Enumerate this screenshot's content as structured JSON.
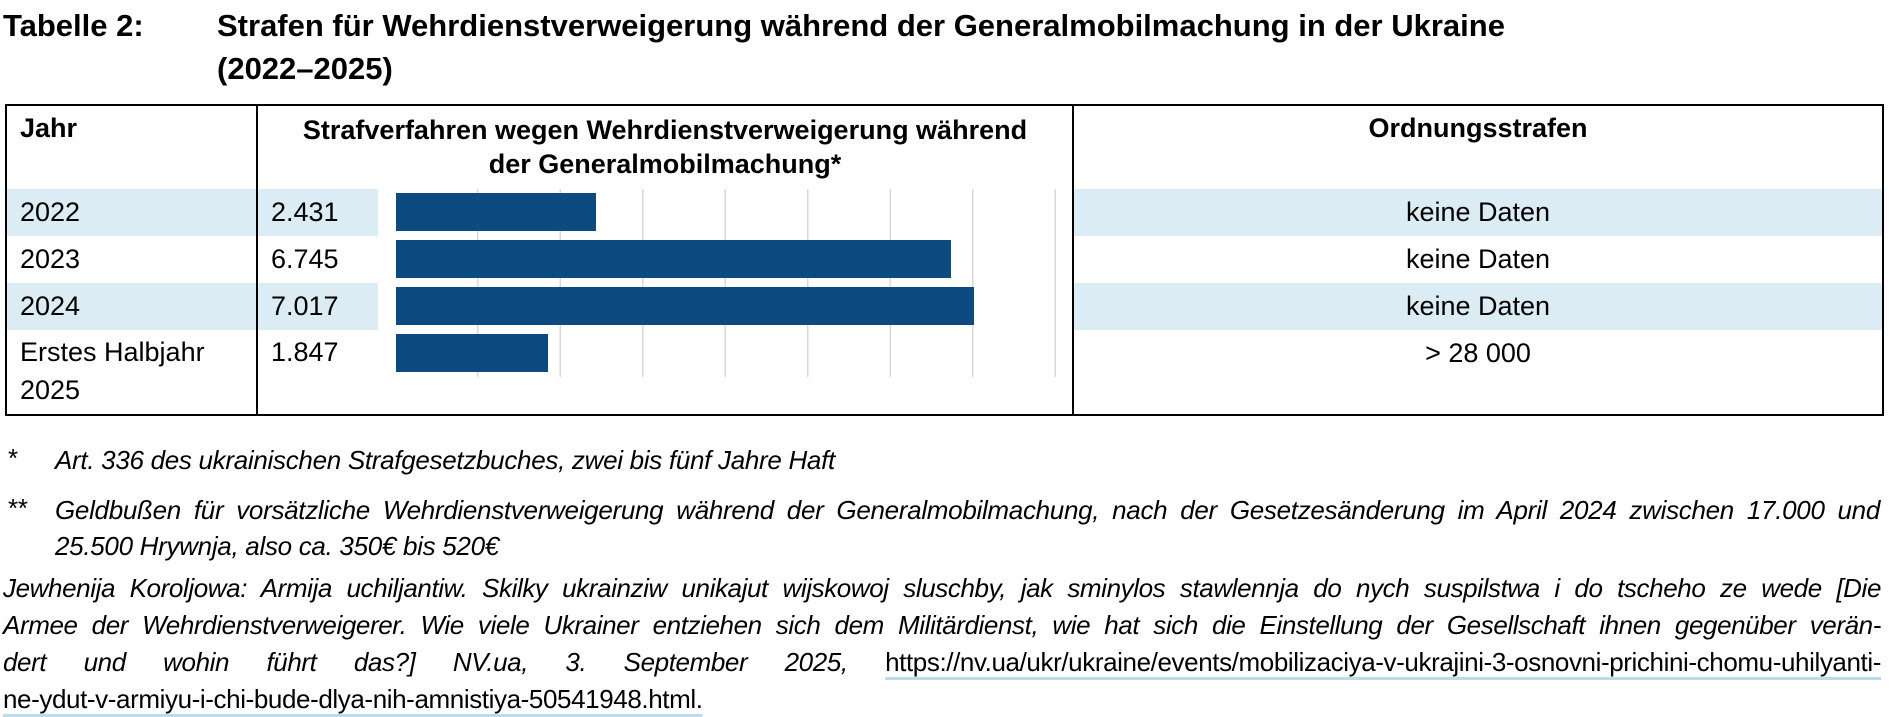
{
  "caption": {
    "label": "Tabelle 2:",
    "title_line1": "Strafen für Wehrdienstverweigerung während der Generalmobilmachung in der Ukraine",
    "title_line2": "(2022–2025)"
  },
  "table": {
    "header": {
      "year": "Jahr",
      "cases_line1": "Strafverfahren wegen Wehrdienstverweigerung während",
      "cases_line2": "der Generalmobilmachung*",
      "fines": "Ordnungsstrafen"
    },
    "rows": [
      {
        "year": "2022",
        "cases_label": "2.431",
        "cases": 2431,
        "fines": "keine Daten",
        "striped": true
      },
      {
        "year": "2023",
        "cases_label": "6.745",
        "cases": 6745,
        "fines": "keine Daten",
        "striped": false
      },
      {
        "year": "2024",
        "cases_label": "7.017",
        "cases": 7017,
        "fines": "keine Daten",
        "striped": true
      },
      {
        "year": "Erstes Halbjahr 2025",
        "cases_label": "1.847",
        "cases": 1847,
        "fines": "> 28 000",
        "striped": false
      }
    ]
  },
  "chart_data": {
    "type": "bar",
    "orientation": "horizontal",
    "title": "Strafverfahren wegen Wehrdienstverweigerung während der Generalmobilmachung*",
    "categories": [
      "2022",
      "2023",
      "2024",
      "Erstes Halbjahr 2025"
    ],
    "values": [
      2431,
      6745,
      7017,
      1847
    ],
    "value_labels": [
      "2.431",
      "6.745",
      "7.017",
      "1.847"
    ],
    "xlim": [
      0,
      8214
    ],
    "gridline_interval": 1000,
    "grid": true,
    "legend": false
  },
  "footnotes": [
    {
      "marker": "*",
      "lines": [
        "Art. 336 des ukrainischen Strafgesetzbuches, zwei bis fünf Jahre Haft"
      ]
    },
    {
      "marker": "**",
      "lines": [
        "Geldbußen für vorsätzliche Wehrdienstverweigerung während der Generalmobilmachung, nach der Gesetzesänderung im April 2024 zwischen 17.000 und",
        "25.500 Hrywnja, also ca. 350€ bis 520€"
      ]
    }
  ],
  "source": {
    "line1": "Jewhenija Koroljowa: Armija uchiljantiw. Skilky ukrainziw unikajut wijskowoj sluschby, jak sminylos stawlennja do nych suspilstwa i do tscheho ze wede [Die",
    "line2": "Armee der Wehrdienstverweigerer. Wie viele Ukrainer entziehen sich dem Militärdienst, wie hat sich die Einstellung der Gesellschaft ihnen gegenüber verän-",
    "line3_text": "dert und wohin führt das?] NV.ua, 3. September 2025,",
    "line3_link": "https://nv.ua/ukr/ukraine/events/mobilizaciya-v-ukrajini-3-osnovni-prichini-chomu-uhilyanti-",
    "line4_link": "ne-ydut-v-armiyu-i-chi-bude-dlya-nih-amnistiya-50541948.html."
  },
  "colors": {
    "bar": "#0d4a80",
    "row_stripe": "#dbecf4",
    "gridline": "#d9d9d9",
    "link_underline": "#bcdcec",
    "table_border": "#000000"
  }
}
